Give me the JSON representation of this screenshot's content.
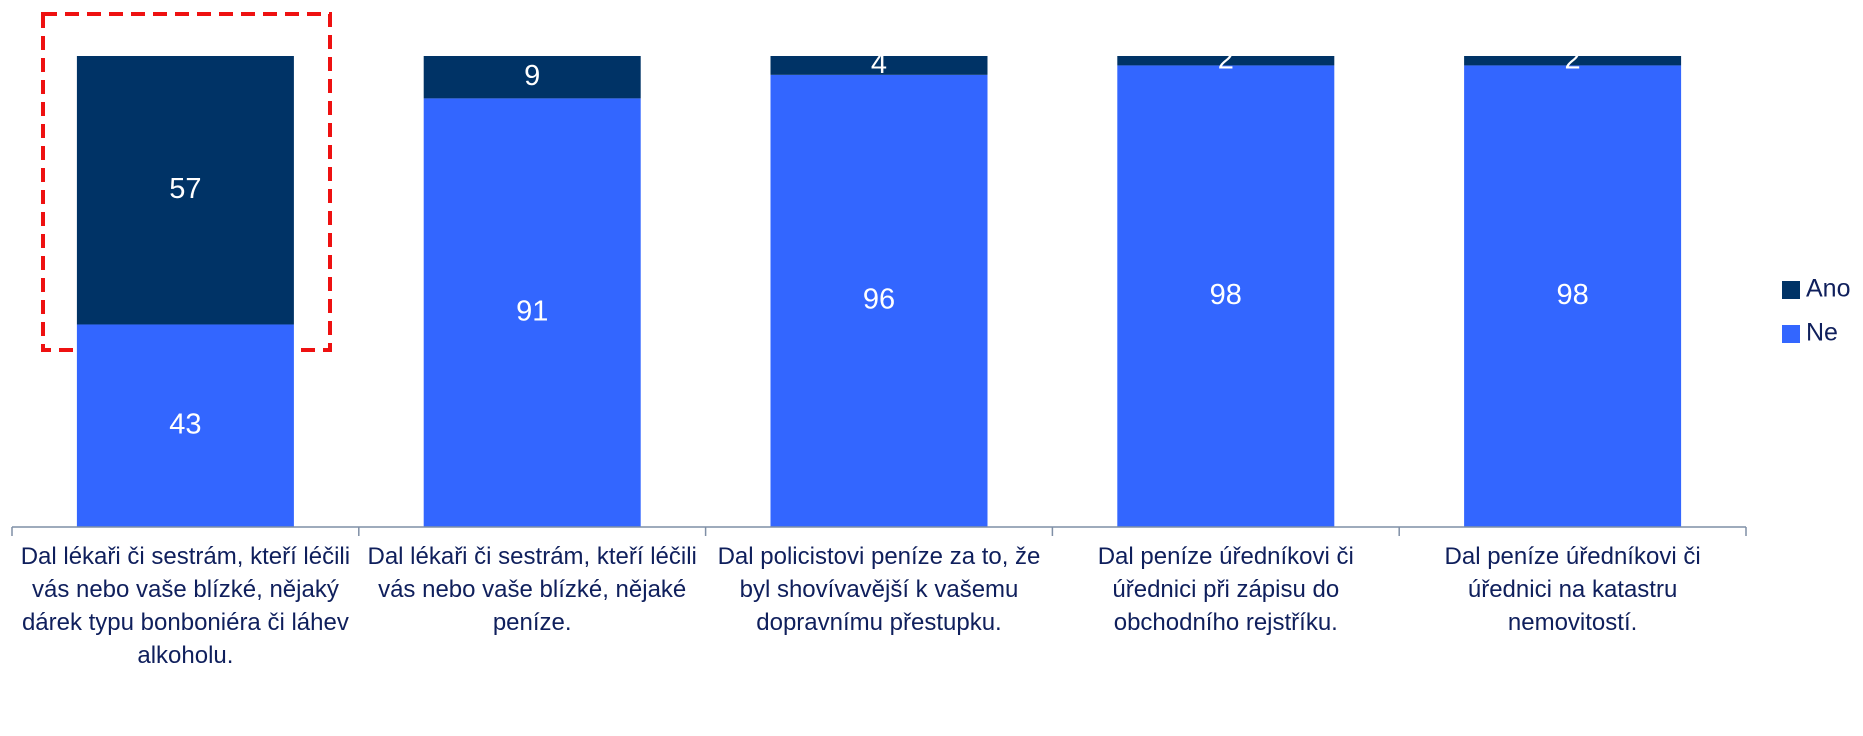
{
  "chart_data": {
    "type": "stacked_bar",
    "categories": [
      "Dal lékaři či sestrám, kteří léčili vás nebo vaše blízké, nějaký dárek typu bonboniéra či láhev alkoholu.",
      "Dal lékaři či sestrám, kteří léčili vás nebo vaše blízké, nějaké peníze.",
      "Dal policistovi peníze za to, že byl shovívavější k vašemu dopravnímu přestupku.",
      "Dal peníze úředníkovi či úřednici při zápisu do obchodního rejstříku.",
      "Dal peníze úředníkovi či úřednici na katastru nemovitostí."
    ],
    "series": [
      {
        "name": "Ne",
        "color": "#3366ff",
        "values": [
          43,
          91,
          96,
          98,
          98
        ]
      },
      {
        "name": "Ano",
        "color": "#003366",
        "values": [
          57,
          9,
          4,
          2,
          2
        ]
      }
    ],
    "legend": "right"
  }
}
